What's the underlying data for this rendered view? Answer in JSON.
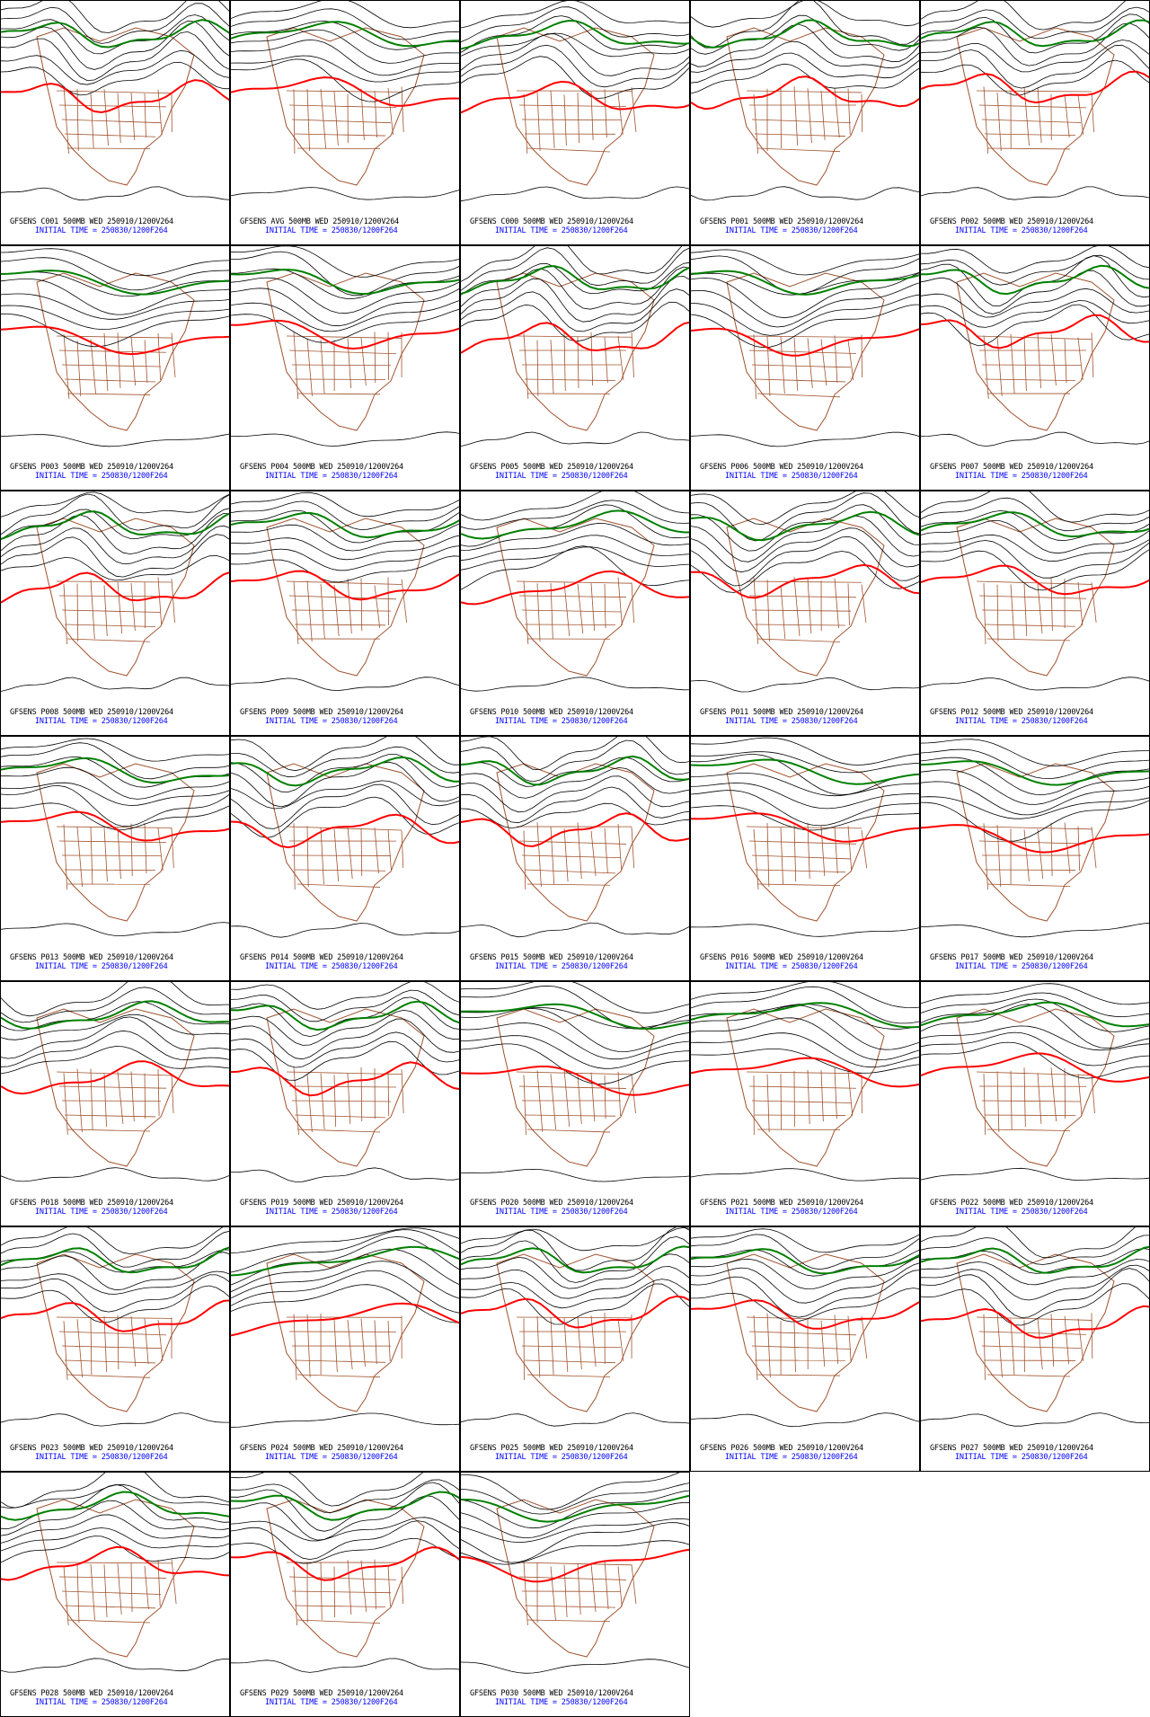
{
  "panels": [
    {
      "line1": "GFSENS C001 500MB WED 250910/1200V264",
      "line2": "INITIAL TIME = 250830/1200F264"
    },
    {
      "line1": "GFSENS AVG 500MB WED 250910/1200V264",
      "line2": "INITIAL TIME = 250830/1200F264"
    },
    {
      "line1": "GFSENS C000 500MB WED 250910/1200V264",
      "line2": "INITIAL TIME = 250830/1200F264"
    },
    {
      "line1": "GFSENS P001 500MB WED 250910/1200V264",
      "line2": "INITIAL TIME = 250830/1200F264"
    },
    {
      "line1": "GFSENS P002 500MB WED 250910/1200V264",
      "line2": "INITIAL TIME = 250830/1200F264"
    },
    {
      "line1": "GFSENS P003 500MB WED 250910/1200V264",
      "line2": "INITIAL TIME = 250830/1200F264"
    },
    {
      "line1": "GFSENS P004 500MB WED 250910/1200V264",
      "line2": "INITIAL TIME = 250830/1200F264"
    },
    {
      "line1": "GFSENS P005 500MB WED 250910/1200V264",
      "line2": "INITIAL TIME = 250830/1200F264"
    },
    {
      "line1": "GFSENS P006 500MB WED 250910/1200V264",
      "line2": "INITIAL TIME = 250830/1200F264"
    },
    {
      "line1": "GFSENS P007 500MB WED 250910/1200V264",
      "line2": "INITIAL TIME = 250830/1200F264"
    },
    {
      "line1": "GFSENS P008 500MB WED 250910/1200V264",
      "line2": "INITIAL TIME = 250830/1200F264"
    },
    {
      "line1": "GFSENS P009 500MB WED 250910/1200V264",
      "line2": "INITIAL TIME = 250830/1200F264"
    },
    {
      "line1": "GFSENS P010 500MB WED 250910/1200V264",
      "line2": "INITIAL TIME = 250830/1200F264"
    },
    {
      "line1": "GFSENS P011 500MB WED 250910/1200V264",
      "line2": "INITIAL TIME = 250830/1200F264"
    },
    {
      "line1": "GFSENS P012 500MB WED 250910/1200V264",
      "line2": "INITIAL TIME = 250830/1200F264"
    },
    {
      "line1": "GFSENS P013 500MB WED 250910/1200V264",
      "line2": "INITIAL TIME = 250830/1200F264"
    },
    {
      "line1": "GFSENS P014 500MB WED 250910/1200V264",
      "line2": "INITIAL TIME = 250830/1200F264"
    },
    {
      "line1": "GFSENS P015 500MB WED 250910/1200V264",
      "line2": "INITIAL TIME = 250830/1200F264"
    },
    {
      "line1": "GFSENS P016 500MB WED 250910/1200V264",
      "line2": "INITIAL TIME = 250830/1200F264"
    },
    {
      "line1": "GFSENS P017 500MB WED 250910/1200V264",
      "line2": "INITIAL TIME = 250830/1200F264"
    },
    {
      "line1": "GFSENS P018 500MB WED 250910/1200V264",
      "line2": "INITIAL TIME = 250830/1200F264"
    },
    {
      "line1": "GFSENS P019 500MB WED 250910/1200V264",
      "line2": "INITIAL TIME = 250830/1200F264"
    },
    {
      "line1": "GFSENS P020 500MB WED 250910/1200V264",
      "line2": "INITIAL TIME = 250830/1200F264"
    },
    {
      "line1": "GFSENS P021 500MB WED 250910/1200V264",
      "line2": "INITIAL TIME = 250830/1200F264"
    },
    {
      "line1": "GFSENS P022 500MB WED 250910/1200V264",
      "line2": "INITIAL TIME = 250830/1200F264"
    },
    {
      "line1": "GFSENS P023 500MB WED 250910/1200V264",
      "line2": "INITIAL TIME = 250830/1200F264"
    },
    {
      "line1": "GFSENS P024 500MB WED 250910/1200V264",
      "line2": "INITIAL TIME = 250830/1200F264"
    },
    {
      "line1": "GFSENS P025 500MB WED 250910/1200V264",
      "line2": "INITIAL TIME = 250830/1200F264"
    },
    {
      "line1": "GFSENS P026 500MB WED 250910/1200V264",
      "line2": "INITIAL TIME = 250830/1200F264"
    },
    {
      "line1": "GFSENS P027 500MB WED 250910/1200V264",
      "line2": "INITIAL TIME = 250830/1200F264"
    },
    {
      "line1": "GFSENS P028 500MB WED 250910/1200V264",
      "line2": "INITIAL TIME = 250830/1200F264"
    },
    {
      "line1": "GFSENS P029 500MB WED 250910/1200V264",
      "line2": "INITIAL TIME = 250830/1200F264"
    },
    {
      "line1": "GFSENS P030 500MB WED 250910/1200V264",
      "line2": "INITIAL TIME = 250830/1200F264"
    }
  ]
}
